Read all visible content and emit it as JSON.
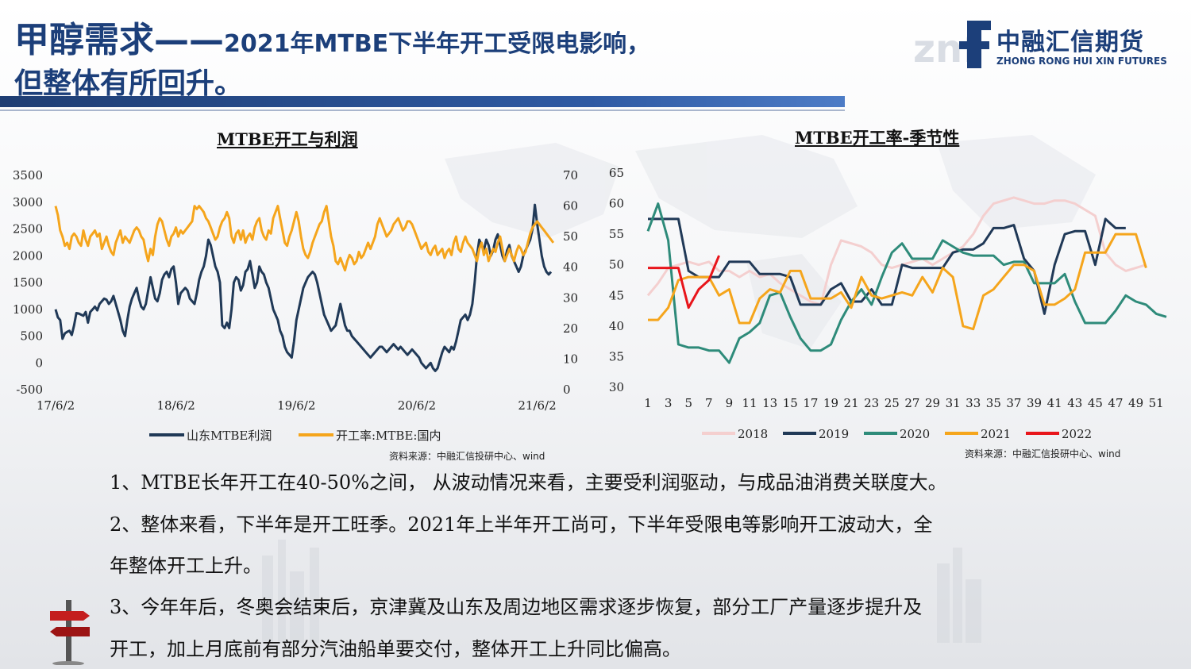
{
  "header": {
    "title_prefix": "甲醇需求——",
    "title_suffix": "2021年MTBE下半年开工受限电影响，",
    "title_line2": "但整体有所回升。"
  },
  "logo": {
    "mark": "znf",
    "name_cn": "中融汇信期货",
    "name_en": "ZHONG RONG HUI XIN FUTURES"
  },
  "colors": {
    "navy": "#1c3f7a",
    "profit_series": "#203957",
    "rate_series": "#f5a51c",
    "y2018": "#f4cfcf",
    "y2019": "#203957",
    "y2020": "#2e8b7a",
    "y2021": "#f5a51c",
    "y2022": "#e8151b"
  },
  "left_chart_title": "MTBE开工与利润",
  "right_chart_title": "MTBE开工率-季节性",
  "left_source": "资料来源：中融汇信投研中心、wind",
  "right_source": "资料来源：中融汇信投研中心、wind",
  "bullets": {
    "b1": "1、MTBE长年开工在40-50%之间，  从波动情况来看，主要受利润驱动，与成品油消费关联度大。",
    "b2a": "2、整体来看，下半年是开工旺季。2021年上半年开工尚可，下半年受限电等影响开工波动大，全",
    "b2b": "年整体开工上升。",
    "b3a": "3、今年年后，冬奥会结束后，京津冀及山东及周边地区需求逐步恢复，部分工厂产量逐步提升及",
    "b3b": "开工，加上月底前有部分汽油船单要交付，整体开工上升同比偏高。"
  },
  "chart_data": [
    {
      "type": "line",
      "title": "MTBE开工与利润",
      "x_ticks": [
        "17/6/2",
        "18/6/2",
        "19/6/2",
        "20/6/2",
        "21/6/2"
      ],
      "x_tick_index": [
        0,
        52,
        104,
        156,
        208
      ],
      "left_axis": {
        "ticks": [
          3500,
          3000,
          2500,
          2000,
          1500,
          1000,
          500,
          0,
          -500
        ],
        "ylim": [
          -500,
          3500
        ]
      },
      "right_axis": {
        "ticks": [
          70,
          60,
          50,
          40,
          30,
          20,
          10,
          0
        ],
        "ylim": [
          0,
          70
        ]
      },
      "legend_position": "bottom",
      "series": [
        {
          "name": "山东MTBE利润",
          "axis": "left",
          "values": [
            1000,
            850,
            800,
            450,
            550,
            580,
            600,
            520,
            700,
            930,
            920,
            900,
            880,
            950,
            750,
            950,
            1000,
            1050,
            980,
            1100,
            1150,
            1200,
            1180,
            1100,
            1150,
            1250,
            1100,
            950,
            800,
            600,
            500,
            800,
            1050,
            1200,
            1300,
            1400,
            1200,
            1050,
            1000,
            1100,
            1350,
            1600,
            1400,
            1200,
            1150,
            1300,
            1550,
            1650,
            1700,
            1600,
            1750,
            1800,
            1500,
            1100,
            1300,
            1350,
            1400,
            1350,
            1200,
            1150,
            1100,
            1300,
            1550,
            1700,
            1800,
            2000,
            2300,
            2200,
            2000,
            1800,
            1700,
            1500,
            700,
            650,
            750,
            650,
            1000,
            1500,
            1600,
            1550,
            1350,
            1450,
            1700,
            1750,
            1900,
            1650,
            1400,
            1500,
            1800,
            1700,
            1650,
            1500,
            1400,
            1200,
            1000,
            900,
            800,
            600,
            500,
            300,
            200,
            150,
            100,
            400,
            800,
            1000,
            1200,
            1400,
            1500,
            1600,
            1650,
            1700,
            1650,
            1500,
            1300,
            1100,
            900,
            800,
            700,
            600,
            650,
            700,
            900,
            1100,
            900,
            700,
            600,
            600,
            500,
            450,
            400,
            350,
            300,
            250,
            200,
            150,
            100,
            150,
            200,
            250,
            300,
            300,
            250,
            200,
            250,
            300,
            350,
            300,
            250,
            300,
            250,
            200,
            150,
            200,
            250,
            200,
            150,
            100,
            0,
            -50,
            -100,
            -50,
            0,
            -100,
            -150,
            -100,
            50,
            200,
            300,
            250,
            200,
            300,
            250,
            400,
            600,
            800,
            850,
            900,
            800,
            900,
            1100,
            1500,
            2000,
            2300,
            2200,
            2100,
            2300,
            2200,
            2000,
            2100,
            2300,
            2400,
            2200,
            2000,
            1900,
            2100,
            2200,
            2000,
            1900,
            1800,
            1700,
            1800,
            2000,
            2100,
            2200,
            2300,
            2500,
            2950,
            2600,
            2300,
            2000,
            1800,
            1700,
            1650,
            1700
          ]
        },
        {
          "name": "开工率:MTBE:国内",
          "axis": "right",
          "values": [
            60,
            57,
            52,
            50,
            47,
            48,
            46,
            50,
            51,
            50,
            48,
            47,
            52,
            49,
            47,
            50,
            51,
            52,
            50,
            51,
            46,
            48,
            50,
            47,
            45,
            44,
            48,
            50,
            52,
            48,
            50,
            49,
            48,
            50,
            52,
            53,
            52,
            50,
            49,
            45,
            42,
            46,
            44,
            50,
            54,
            56,
            55,
            52,
            49,
            47,
            50,
            51,
            53,
            50,
            52,
            51,
            52,
            53,
            54,
            55,
            60,
            59,
            60,
            59,
            58,
            56,
            55,
            53,
            51,
            49,
            50,
            53,
            55,
            56,
            58,
            56,
            50,
            48,
            51,
            52,
            49,
            52,
            48,
            50,
            51,
            49,
            53,
            55,
            56,
            52,
            50,
            49,
            52,
            51,
            56,
            58,
            60,
            56,
            52,
            48,
            47,
            50,
            52,
            55,
            58,
            55,
            50,
            46,
            44,
            43,
            45,
            48,
            50,
            52,
            54,
            55,
            58,
            60,
            55,
            50,
            47,
            42,
            41,
            43,
            41,
            39,
            42,
            44,
            43,
            41,
            42,
            45,
            43,
            44,
            46,
            48,
            46,
            48,
            50,
            54,
            56,
            54,
            52,
            50,
            51,
            52,
            54,
            55,
            56,
            54,
            52,
            53,
            55,
            55,
            54,
            52,
            50,
            48,
            46,
            47,
            48,
            45,
            44,
            46,
            47,
            44,
            45,
            46,
            43,
            45,
            46,
            44,
            48,
            50,
            46,
            45,
            48,
            50,
            48,
            47,
            46,
            44,
            42,
            46,
            48,
            44,
            46,
            42,
            44,
            46,
            45,
            48,
            50,
            46,
            42,
            44,
            46,
            44,
            42,
            45,
            47,
            46,
            44,
            45,
            48,
            51,
            53,
            54,
            55,
            54,
            53,
            52,
            51,
            50,
            49,
            48
          ]
        }
      ]
    },
    {
      "type": "line",
      "title": "MTBE开工率-季节性",
      "x": [
        1,
        2,
        3,
        4,
        5,
        6,
        7,
        8,
        9,
        10,
        11,
        12,
        13,
        14,
        15,
        16,
        17,
        18,
        19,
        20,
        21,
        22,
        23,
        24,
        25,
        26,
        27,
        28,
        29,
        30,
        31,
        32,
        33,
        34,
        35,
        36,
        37,
        38,
        39,
        40,
        41,
        42,
        43,
        44,
        45,
        46,
        47,
        48,
        49,
        50,
        51,
        52
      ],
      "x_ticks": [
        1,
        3,
        5,
        7,
        9,
        11,
        13,
        15,
        17,
        19,
        21,
        23,
        25,
        27,
        29,
        31,
        33,
        35,
        37,
        39,
        41,
        43,
        45,
        47,
        49,
        51
      ],
      "y_ticks": [
        65,
        60,
        55,
        50,
        45,
        40,
        35,
        30
      ],
      "ylim": [
        30,
        65
      ],
      "legend_position": "bottom",
      "series": [
        {
          "name": "2018",
          "values": [
            45.0,
            47.0,
            49.5,
            50.0,
            50.5,
            50.0,
            50.5,
            49.0,
            49.0,
            48.0,
            49.0,
            48.0,
            48.5,
            47.0,
            46.0,
            45.0,
            44.0,
            43.5,
            50.0,
            54.0,
            53.5,
            53.0,
            52.0,
            50.0,
            49.5,
            50.0,
            50.5,
            51.0,
            50.0,
            51.0,
            52.0,
            53.0,
            55.0,
            58.0,
            60.0,
            60.5,
            61.0,
            60.5,
            60.0,
            60.0,
            60.5,
            60.5,
            60.0,
            59.0,
            58.0,
            52.0,
            50.0,
            49.0,
            49.5,
            50.0,
            null,
            null
          ]
        },
        {
          "name": "2019",
          "values": [
            57.5,
            57.5,
            57.5,
            57.5,
            49.0,
            48.0,
            48.0,
            48.0,
            50.5,
            50.5,
            50.5,
            48.5,
            48.5,
            48.5,
            48.0,
            43.5,
            43.5,
            43.5,
            46.0,
            47.0,
            44.0,
            44.0,
            46.0,
            43.5,
            43.5,
            50.0,
            49.5,
            49.5,
            49.5,
            49.5,
            52.0,
            52.5,
            52.5,
            53.5,
            56.0,
            56.0,
            56.5,
            51.0,
            49.0,
            42.0,
            50.0,
            55.0,
            55.5,
            55.5,
            50.0,
            57.5,
            56.0,
            56.0,
            null,
            null,
            null,
            null
          ]
        },
        {
          "name": "2020",
          "values": [
            55.5,
            60.0,
            54.0,
            37.0,
            36.5,
            36.5,
            36.0,
            36.0,
            34.0,
            38.0,
            39.0,
            40.5,
            45.0,
            45.5,
            41.5,
            38.0,
            36.0,
            36.0,
            37.0,
            41.0,
            44.0,
            46.0,
            43.5,
            48.0,
            52.0,
            53.5,
            51.0,
            51.0,
            51.0,
            54.0,
            53.0,
            52.0,
            51.5,
            51.5,
            51.5,
            50.0,
            50.5,
            50.5,
            47.0,
            47.0,
            47.0,
            48.5,
            44.0,
            40.5,
            40.5,
            40.5,
            42.5,
            45.0,
            44.0,
            43.5,
            42.0,
            41.5
          ]
        },
        {
          "name": "2021",
          "values": [
            41.0,
            41.0,
            43.0,
            47.5,
            48.0,
            48.0,
            48.0,
            45.0,
            46.0,
            40.5,
            40.5,
            44.5,
            46.0,
            45.5,
            49.0,
            49.0,
            44.5,
            44.5,
            44.5,
            45.5,
            43.0,
            48.0,
            45.0,
            44.5,
            45.0,
            45.5,
            45.0,
            48.0,
            45.5,
            49.5,
            48.0,
            40.0,
            39.5,
            45.0,
            46.0,
            48.0,
            50.0,
            50.0,
            49.0,
            43.5,
            43.5,
            44.5,
            46.0,
            52.0,
            52.0,
            52.0,
            55.0,
            55.0,
            55.0,
            49.5,
            null,
            null
          ]
        },
        {
          "name": "2022",
          "values": [
            49.5,
            49.5,
            49.5,
            49.5,
            43.0,
            46.0,
            47.5,
            51.5,
            null,
            null,
            null,
            null,
            null,
            null,
            null,
            null,
            null,
            null,
            null,
            null,
            null,
            null,
            null,
            null,
            null,
            null,
            null,
            null,
            null,
            null,
            null,
            null,
            null,
            null,
            null,
            null,
            null,
            null,
            null,
            null,
            null,
            null,
            null,
            null,
            null,
            null,
            null,
            null,
            null,
            null,
            null,
            null
          ]
        }
      ]
    }
  ]
}
